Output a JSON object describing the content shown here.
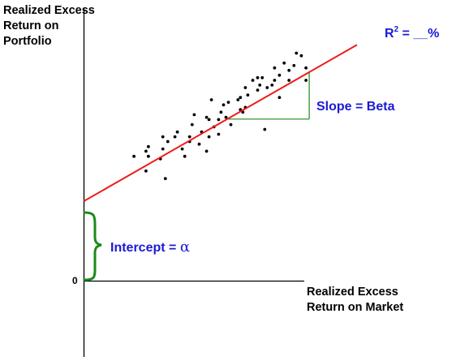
{
  "chart_data": {
    "type": "scatter",
    "title": "",
    "ylabel_lines": [
      "Realized Excess",
      "Return on",
      "Portfolio"
    ],
    "xlabel_lines": [
      "Realized Excess",
      "Return on Market"
    ],
    "origin_label": "0",
    "r_squared_label": {
      "prefix": "R",
      "sup": "2",
      "suffix": " = __%"
    },
    "slope_label": "Slope = Beta",
    "intercept_label": {
      "text": "Intercept  =  ",
      "symbol": "α"
    },
    "xlim": [
      0,
      100
    ],
    "ylim": [
      -30,
      100
    ],
    "regression_line": {
      "intercept": 31.5,
      "slope": 0.617,
      "x_range": [
        0,
        100
      ],
      "color": "#ee1c1c"
    },
    "slope_triangle": {
      "x0": 52.5,
      "x1": 82.5,
      "color": "#1a8a1a"
    },
    "brace_color": "#1a8a1a",
    "label_color": "#1a1ad6",
    "series": [
      {
        "color": "#000000",
        "points": [
          [
            18.3,
            49.2
          ],
          [
            22.7,
            51.2
          ],
          [
            22.7,
            43.4
          ],
          [
            23.6,
            53.0
          ],
          [
            23.6,
            49.2
          ],
          [
            28.9,
            52.1
          ],
          [
            28.0,
            48.2
          ],
          [
            28.9,
            56.9
          ],
          [
            29.8,
            40.4
          ],
          [
            30.7,
            55.0
          ],
          [
            33.3,
            56.9
          ],
          [
            34.2,
            58.8
          ],
          [
            36.0,
            52.1
          ],
          [
            36.9,
            49.2
          ],
          [
            38.7,
            56.9
          ],
          [
            38.7,
            55.0
          ],
          [
            39.6,
            61.7
          ],
          [
            40.4,
            65.6
          ],
          [
            42.2,
            54.0
          ],
          [
            43.1,
            58.8
          ],
          [
            44.9,
            64.6
          ],
          [
            44.9,
            51.2
          ],
          [
            45.8,
            63.7
          ],
          [
            45.8,
            56.9
          ],
          [
            46.7,
            71.5
          ],
          [
            47.6,
            60.8
          ],
          [
            49.3,
            63.7
          ],
          [
            49.3,
            57.9
          ],
          [
            50.2,
            66.6
          ],
          [
            51.1,
            69.5
          ],
          [
            52.0,
            64.6
          ],
          [
            52.9,
            70.5
          ],
          [
            53.8,
            61.7
          ],
          [
            56.4,
            71.5
          ],
          [
            57.3,
            67.6
          ],
          [
            57.3,
            72.4
          ],
          [
            58.2,
            66.6
          ],
          [
            59.1,
            76.3
          ],
          [
            59.1,
            68.5
          ],
          [
            60.0,
            73.4
          ],
          [
            61.8,
            79.2
          ],
          [
            63.6,
            75.3
          ],
          [
            63.6,
            80.2
          ],
          [
            64.4,
            77.3
          ],
          [
            65.3,
            80.2
          ],
          [
            66.2,
            59.8
          ],
          [
            67.1,
            76.3
          ],
          [
            68.9,
            77.3
          ],
          [
            69.8,
            84.1
          ],
          [
            69.8,
            79.2
          ],
          [
            71.6,
            81.2
          ],
          [
            71.6,
            72.4
          ],
          [
            73.3,
            86.0
          ],
          [
            75.1,
            83.1
          ],
          [
            75.1,
            79.2
          ],
          [
            76.9,
            85.0
          ],
          [
            77.8,
            89.9
          ],
          [
            79.6,
            88.9
          ],
          [
            81.3,
            84.1
          ],
          [
            81.3,
            79.2
          ]
        ]
      }
    ]
  }
}
